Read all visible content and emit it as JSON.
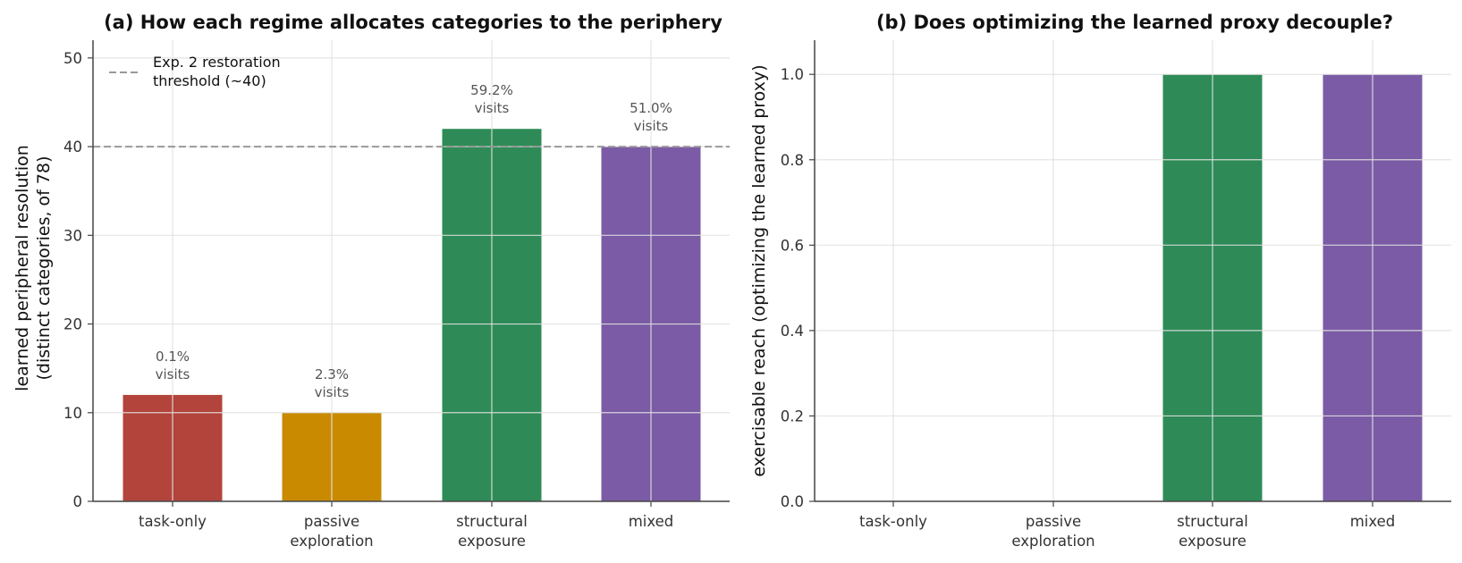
{
  "chart_data": [
    {
      "type": "bar",
      "title": "(a) How each regime allocates categories to the periphery",
      "ylabel_lines": [
        "learned peripheral resolution",
        "(distinct categories, of 78)"
      ],
      "categories": [
        [
          "task-only"
        ],
        [
          "passive",
          "exploration"
        ],
        [
          "structural",
          "exposure"
        ],
        [
          "mixed"
        ]
      ],
      "values": [
        12,
        10,
        42,
        40
      ],
      "colors": [
        "#b3443b",
        "#c98a00",
        "#2e8b57",
        "#7b5ba6"
      ],
      "data_labels": [
        [
          "0.1%",
          "visits"
        ],
        [
          "2.3%",
          "visits"
        ],
        [
          "59.2%",
          "visits"
        ],
        [
          "51.0%",
          "visits"
        ]
      ],
      "ylim": [
        0,
        52
      ],
      "yticks": [
        0,
        10,
        20,
        30,
        40,
        50
      ],
      "ytick_labels": [
        "0",
        "10",
        "20",
        "30",
        "40",
        "50"
      ],
      "grid": true,
      "reference_line": {
        "y": 40,
        "color": "#999999",
        "style": "dashed",
        "label_lines": [
          "Exp. 2 restoration",
          "threshold (~40)"
        ]
      },
      "legend": "top-left"
    },
    {
      "type": "bar",
      "title": "(b) Does optimizing the learned proxy decouple?",
      "ylabel_lines": [
        "exercisable reach (optimizing the learned proxy)"
      ],
      "categories": [
        [
          "task-only"
        ],
        [
          "passive",
          "exploration"
        ],
        [
          "structural",
          "exposure"
        ],
        [
          "mixed"
        ]
      ],
      "values": [
        0,
        0,
        1.0,
        1.0
      ],
      "colors": [
        "#b3443b",
        "#c98a00",
        "#2e8b57",
        "#7b5ba6"
      ],
      "ylim": [
        0,
        1.08
      ],
      "yticks": [
        0,
        0.2,
        0.4,
        0.6,
        0.8,
        1.0
      ],
      "ytick_labels": [
        "0.0",
        "0.2",
        "0.4",
        "0.6",
        "0.8",
        "1.0"
      ],
      "grid": true
    }
  ]
}
